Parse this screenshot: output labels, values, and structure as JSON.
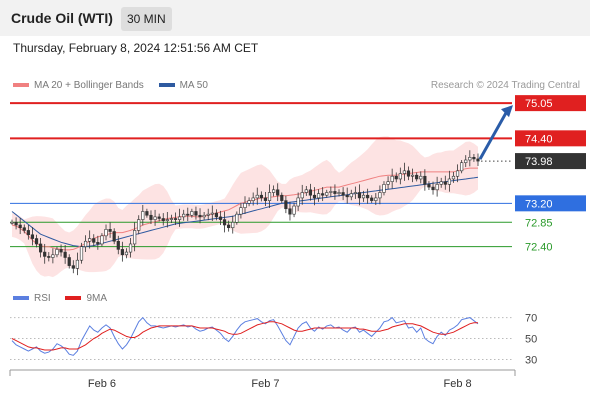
{
  "header": {
    "instrument": "Crude Oil (WTI)",
    "timeframe": "30 MIN",
    "datetime": "Thursday, February 8, 2024 12:51:56 AM CET"
  },
  "legend": {
    "items": [
      {
        "label": "MA 20 + Bollinger Bands",
        "color": "#f08080"
      },
      {
        "label": "MA 50",
        "color": "#2e5aa0"
      }
    ],
    "credit": "Research © 2024 Trading Central"
  },
  "levels": [
    {
      "value": 75.05,
      "label": "75.05",
      "kind": "resistance",
      "color": "#e02020"
    },
    {
      "value": 74.4,
      "label": "74.40",
      "kind": "resistance",
      "color": "#e02020"
    },
    {
      "value": 73.98,
      "label": "73.98",
      "kind": "last",
      "color": "#333333"
    },
    {
      "value": 73.2,
      "label": "73.20",
      "kind": "pivot",
      "color": "#2f6fe0"
    },
    {
      "value": 72.85,
      "label": "72.85",
      "kind": "support",
      "color": "#2a9a2a"
    },
    {
      "value": 72.4,
      "label": "72.40",
      "kind": "support",
      "color": "#2a9a2a"
    }
  ],
  "rsi_panel": {
    "legend": [
      {
        "label": "RSI",
        "color": "#5b7fe0"
      },
      {
        "label": "9MA",
        "color": "#e02020"
      }
    ],
    "ticks": [
      "70",
      "50",
      "30"
    ]
  },
  "x_axis": [
    "Feb 6",
    "Feb 7",
    "Feb 8"
  ],
  "chart_data": {
    "type": "line",
    "close": [
      72.85,
      72.8,
      72.75,
      72.7,
      72.62,
      72.55,
      72.45,
      72.3,
      72.22,
      72.2,
      72.25,
      72.35,
      72.3,
      72.2,
      72.05,
      72.0,
      72.15,
      72.4,
      72.5,
      72.55,
      72.48,
      72.45,
      72.6,
      72.72,
      72.68,
      72.5,
      72.35,
      72.25,
      72.3,
      72.45,
      72.7,
      72.9,
      73.05,
      72.98,
      72.9,
      72.95,
      72.92,
      72.88,
      72.9,
      72.92,
      72.9,
      72.95,
      73.0,
      72.98,
      73.05,
      72.98,
      72.95,
      72.98,
      73.0,
      73.02,
      72.95,
      72.9,
      72.8,
      72.75,
      72.85,
      73.0,
      73.12,
      73.2,
      73.25,
      73.3,
      73.35,
      73.3,
      73.25,
      73.4,
      73.45,
      73.35,
      73.25,
      73.1,
      73.0,
      73.15,
      73.3,
      73.4,
      73.45,
      73.35,
      73.3,
      73.38,
      73.35,
      73.4,
      73.42,
      73.38,
      73.4,
      73.35,
      73.32,
      73.38,
      73.4,
      73.3,
      73.35,
      73.3,
      73.25,
      73.3,
      73.4,
      73.55,
      73.6,
      73.7,
      73.65,
      73.75,
      73.8,
      73.7,
      73.72,
      73.65,
      73.7,
      73.55,
      73.5,
      73.45,
      73.55,
      73.6,
      73.55,
      73.65,
      73.7,
      73.8,
      73.95,
      74.0,
      74.05,
      74.02,
      73.98
    ],
    "ma20": [
      72.8,
      72.78,
      72.74,
      72.68,
      72.6,
      72.52,
      72.46,
      72.42,
      72.4,
      72.4,
      72.38,
      72.36,
      72.35,
      72.34,
      72.34,
      72.35,
      72.38,
      72.42,
      72.46,
      72.5,
      72.55,
      72.58,
      72.6,
      72.62,
      72.64,
      72.66,
      72.66,
      72.66,
      72.68,
      72.7,
      72.73,
      72.76,
      72.8,
      72.82,
      72.84,
      72.86,
      72.88,
      72.9,
      72.92,
      72.93,
      72.94,
      72.95,
      72.96,
      72.96,
      72.96,
      72.95,
      72.95,
      72.96,
      72.98,
      73.0,
      73.02,
      73.04,
      73.06,
      73.08,
      73.12,
      73.16,
      73.2,
      73.22,
      73.24,
      73.26,
      73.28,
      73.3,
      73.3,
      73.31,
      73.32,
      73.33,
      73.34,
      73.34,
      73.35,
      73.36,
      73.37,
      73.38,
      73.4,
      73.42,
      73.44,
      73.46,
      73.48,
      73.5,
      73.5,
      73.5,
      73.5,
      73.52,
      73.54,
      73.56,
      73.58,
      73.6,
      73.62,
      73.64,
      73.66,
      73.68,
      73.7,
      73.71,
      73.72,
      73.72,
      73.72,
      73.73,
      73.74,
      73.75,
      73.76,
      73.77,
      73.78,
      73.78,
      73.78,
      73.78,
      73.78,
      73.78,
      73.78,
      73.78,
      73.78,
      73.8,
      73.82,
      73.84,
      73.85,
      73.85,
      73.85
    ],
    "ma50": [
      73.05,
      72.99,
      72.93,
      72.87,
      72.81,
      72.75,
      72.69,
      72.63,
      72.6,
      72.57,
      72.54,
      72.51,
      72.48,
      72.46,
      72.44,
      72.42,
      72.41,
      72.4,
      72.4,
      72.41,
      72.42,
      72.44,
      72.46,
      72.48,
      72.5,
      72.52,
      72.54,
      72.56,
      72.58,
      72.6,
      72.62,
      72.64,
      72.66,
      72.68,
      72.7,
      72.72,
      72.74,
      72.76,
      72.78,
      72.8,
      72.82,
      72.83,
      72.84,
      72.85,
      72.86,
      72.87,
      72.88,
      72.89,
      72.9,
      72.91,
      72.92,
      72.93,
      72.94,
      72.95,
      72.96,
      72.98,
      73.0,
      73.02,
      73.04,
      73.06,
      73.08,
      73.1,
      73.12,
      73.14,
      73.16,
      73.18,
      73.2,
      73.21,
      73.22,
      73.23,
      73.24,
      73.25,
      73.26,
      73.27,
      73.28,
      73.29,
      73.3,
      73.31,
      73.32,
      73.33,
      73.34,
      73.35,
      73.36,
      73.37,
      73.38,
      73.39,
      73.4,
      73.41,
      73.42,
      73.43,
      73.44,
      73.45,
      73.46,
      73.47,
      73.48,
      73.49,
      73.5,
      73.51,
      73.52,
      73.53,
      73.54,
      73.55,
      73.56,
      73.57,
      73.58,
      73.59,
      73.6,
      73.61,
      73.62,
      73.63,
      73.64,
      73.65,
      73.66,
      73.67,
      73.68
    ],
    "rsi": [
      48,
      44,
      42,
      40,
      38,
      40,
      42,
      38,
      36,
      37,
      40,
      45,
      43,
      40,
      35,
      34,
      38,
      48,
      55,
      62,
      58,
      56,
      60,
      63,
      60,
      52,
      45,
      40,
      44,
      50,
      58,
      66,
      70,
      65,
      62,
      62,
      61,
      60,
      61,
      62,
      61,
      62,
      63,
      61,
      62,
      59,
      57,
      58,
      60,
      61,
      58,
      55,
      50,
      47,
      52,
      58,
      63,
      66,
      67,
      68,
      69,
      66,
      64,
      67,
      68,
      62,
      55,
      48,
      44,
      52,
      60,
      64,
      66,
      60,
      57,
      61,
      59,
      62,
      63,
      60,
      61,
      58,
      56,
      60,
      61,
      56,
      58,
      55,
      52,
      56,
      60,
      66,
      67,
      70,
      65,
      66,
      67,
      60,
      61,
      56,
      60,
      50,
      47,
      45,
      52,
      56,
      53,
      58,
      60,
      63,
      68,
      69,
      70,
      67,
      64
    ],
    "rsi_ma": [
      50,
      48,
      46,
      44,
      42,
      41,
      41,
      40,
      39,
      39,
      39,
      40,
      41,
      41,
      40,
      40,
      40,
      42,
      44,
      47,
      50,
      52,
      55,
      57,
      59,
      58,
      56,
      54,
      52,
      51,
      51,
      53,
      56,
      58,
      60,
      61,
      62,
      62,
      62,
      62,
      62,
      62,
      62,
      62,
      62,
      61,
      60,
      60,
      60,
      60,
      59,
      58,
      57,
      55,
      54,
      54,
      55,
      57,
      59,
      61,
      63,
      64,
      65,
      66,
      66,
      65,
      64,
      62,
      60,
      58,
      57,
      57,
      58,
      59,
      60,
      60,
      60,
      60,
      60,
      60,
      60,
      60,
      60,
      60,
      60,
      59,
      59,
      58,
      57,
      57,
      57,
      58,
      59,
      61,
      62,
      63,
      64,
      64,
      64,
      63,
      62,
      60,
      58,
      56,
      55,
      54,
      54,
      55,
      56,
      58,
      60,
      62,
      64,
      65,
      65
    ],
    "rsi_levels": [
      70,
      50,
      30
    ],
    "price_range": [
      71.6,
      75.2
    ],
    "rsi_range": [
      18,
      82
    ],
    "x_labels": [
      "Feb 6",
      "Feb 7",
      "Feb 8"
    ],
    "x_label_index": [
      22,
      62,
      109
    ],
    "projection": [
      73.98,
      75.05
    ]
  }
}
